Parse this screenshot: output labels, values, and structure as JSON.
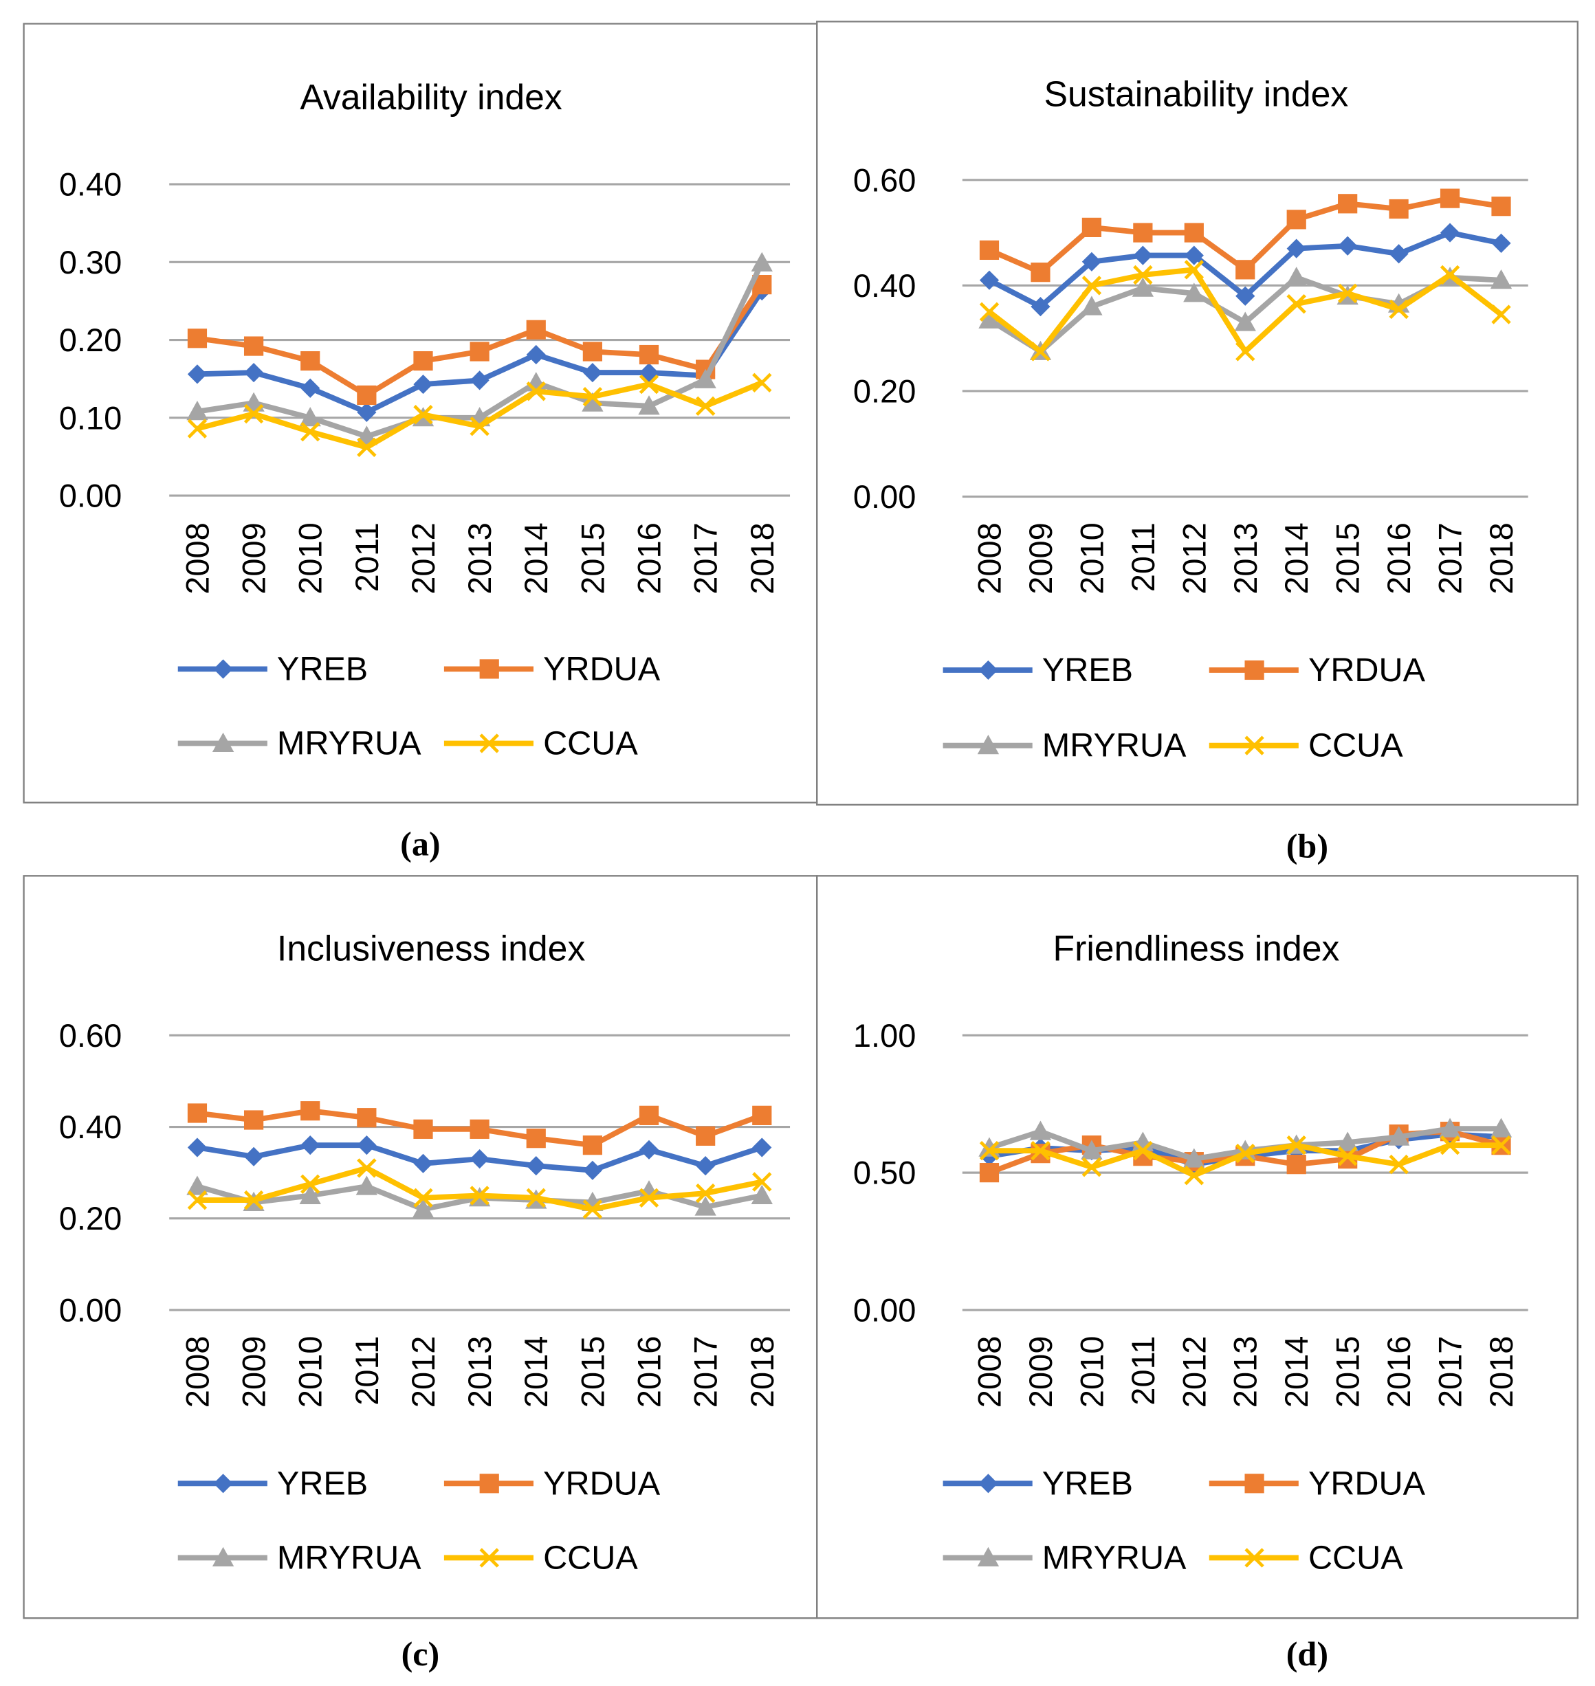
{
  "chart_data": [
    {
      "type": "line",
      "panel_label": "(a)",
      "title": "Availability index",
      "categories": [
        "2008",
        "2009",
        "2010",
        "2011",
        "2012",
        "2013",
        "2014",
        "2015",
        "2016",
        "2017",
        "2018"
      ],
      "ylim": [
        0,
        0.4
      ],
      "yticks": [
        "0.00",
        "0.10",
        "0.20",
        "0.30",
        "0.40"
      ],
      "grid": true,
      "legend_placement": "bottom",
      "series": [
        {
          "name": "YREB",
          "color": "#4472C4",
          "marker": "diamond",
          "values": [
            0.156,
            0.158,
            0.138,
            0.107,
            0.143,
            0.148,
            0.181,
            0.158,
            0.158,
            0.154,
            0.263
          ]
        },
        {
          "name": "YRDUA",
          "color": "#ED7D31",
          "marker": "square",
          "values": [
            0.202,
            0.192,
            0.173,
            0.129,
            0.173,
            0.185,
            0.213,
            0.185,
            0.181,
            0.162,
            0.271
          ]
        },
        {
          "name": "MRYRUA",
          "color": "#A5A5A5",
          "marker": "triangle",
          "values": [
            0.108,
            0.119,
            0.1,
            0.076,
            0.1,
            0.1,
            0.145,
            0.119,
            0.115,
            0.149,
            0.299
          ]
        },
        {
          "name": "CCUA",
          "color": "#FFC000",
          "marker": "x",
          "values": [
            0.086,
            0.105,
            0.082,
            0.062,
            0.104,
            0.089,
            0.134,
            0.127,
            0.143,
            0.115,
            0.145
          ]
        }
      ]
    },
    {
      "type": "line",
      "panel_label": "(b)",
      "title": "Sustainability index",
      "categories": [
        "2008",
        "2009",
        "2010",
        "2011",
        "2012",
        "2013",
        "2014",
        "2015",
        "2016",
        "2017",
        "2018"
      ],
      "ylim": [
        0,
        0.6
      ],
      "yticks": [
        "0.00",
        "0.20",
        "0.40",
        "0.60"
      ],
      "grid": true,
      "legend_placement": "bottom",
      "series": [
        {
          "name": "YREB",
          "color": "#4472C4",
          "marker": "diamond",
          "values": [
            0.41,
            0.36,
            0.445,
            0.457,
            0.457,
            0.38,
            0.47,
            0.475,
            0.46,
            0.5,
            0.48
          ]
        },
        {
          "name": "YRDUA",
          "color": "#ED7D31",
          "marker": "square",
          "values": [
            0.467,
            0.425,
            0.51,
            0.5,
            0.5,
            0.43,
            0.525,
            0.555,
            0.545,
            0.565,
            0.55
          ]
        },
        {
          "name": "MRYRUA",
          "color": "#A5A5A5",
          "marker": "triangle",
          "values": [
            0.335,
            0.275,
            0.36,
            0.395,
            0.385,
            0.33,
            0.415,
            0.38,
            0.365,
            0.415,
            0.41
          ]
        },
        {
          "name": "CCUA",
          "color": "#FFC000",
          "marker": "x",
          "values": [
            0.35,
            0.275,
            0.4,
            0.42,
            0.43,
            0.275,
            0.365,
            0.385,
            0.355,
            0.42,
            0.345
          ]
        }
      ]
    },
    {
      "type": "line",
      "panel_label": "(c)",
      "title": "Inclusiveness index",
      "categories": [
        "2008",
        "2009",
        "2010",
        "2011",
        "2012",
        "2013",
        "2014",
        "2015",
        "2016",
        "2017",
        "2018"
      ],
      "ylim": [
        0,
        0.6
      ],
      "yticks": [
        "0.00",
        "0.20",
        "0.40",
        "0.60"
      ],
      "grid": true,
      "legend_placement": "bottom",
      "series": [
        {
          "name": "YREB",
          "color": "#4472C4",
          "marker": "diamond",
          "values": [
            0.355,
            0.335,
            0.36,
            0.36,
            0.32,
            0.33,
            0.315,
            0.305,
            0.35,
            0.315,
            0.355
          ]
        },
        {
          "name": "YRDUA",
          "color": "#ED7D31",
          "marker": "square",
          "values": [
            0.43,
            0.415,
            0.435,
            0.42,
            0.395,
            0.395,
            0.375,
            0.36,
            0.425,
            0.38,
            0.425
          ]
        },
        {
          "name": "MRYRUA",
          "color": "#A5A5A5",
          "marker": "triangle",
          "values": [
            0.27,
            0.235,
            0.25,
            0.27,
            0.22,
            0.245,
            0.24,
            0.235,
            0.26,
            0.225,
            0.25
          ]
        },
        {
          "name": "CCUA",
          "color": "#FFC000",
          "marker": "x",
          "values": [
            0.24,
            0.24,
            0.275,
            0.31,
            0.245,
            0.25,
            0.245,
            0.22,
            0.245,
            0.255,
            0.28
          ]
        }
      ]
    },
    {
      "type": "line",
      "panel_label": "(d)",
      "title": "Friendliness index",
      "categories": [
        "2008",
        "2009",
        "2010",
        "2011",
        "2012",
        "2013",
        "2014",
        "2015",
        "2016",
        "2017",
        "2018"
      ],
      "ylim": [
        0,
        1.0
      ],
      "yticks": [
        "0.00",
        "0.50",
        "1.00"
      ],
      "grid": true,
      "legend_placement": "bottom",
      "series": [
        {
          "name": "YREB",
          "color": "#4472C4",
          "marker": "diamond",
          "values": [
            0.56,
            0.59,
            0.58,
            0.59,
            0.53,
            0.56,
            0.58,
            0.58,
            0.62,
            0.64,
            0.63
          ]
        },
        {
          "name": "YRDUA",
          "color": "#ED7D31",
          "marker": "square",
          "values": [
            0.5,
            0.57,
            0.6,
            0.56,
            0.54,
            0.56,
            0.53,
            0.55,
            0.64,
            0.65,
            0.6
          ]
        },
        {
          "name": "MRYRUA",
          "color": "#A5A5A5",
          "marker": "triangle",
          "values": [
            0.59,
            0.65,
            0.58,
            0.61,
            0.55,
            0.58,
            0.6,
            0.61,
            0.63,
            0.66,
            0.66
          ]
        },
        {
          "name": "CCUA",
          "color": "#FFC000",
          "marker": "x",
          "values": [
            0.58,
            0.58,
            0.52,
            0.58,
            0.49,
            0.57,
            0.6,
            0.56,
            0.53,
            0.6,
            0.6
          ]
        }
      ]
    }
  ]
}
